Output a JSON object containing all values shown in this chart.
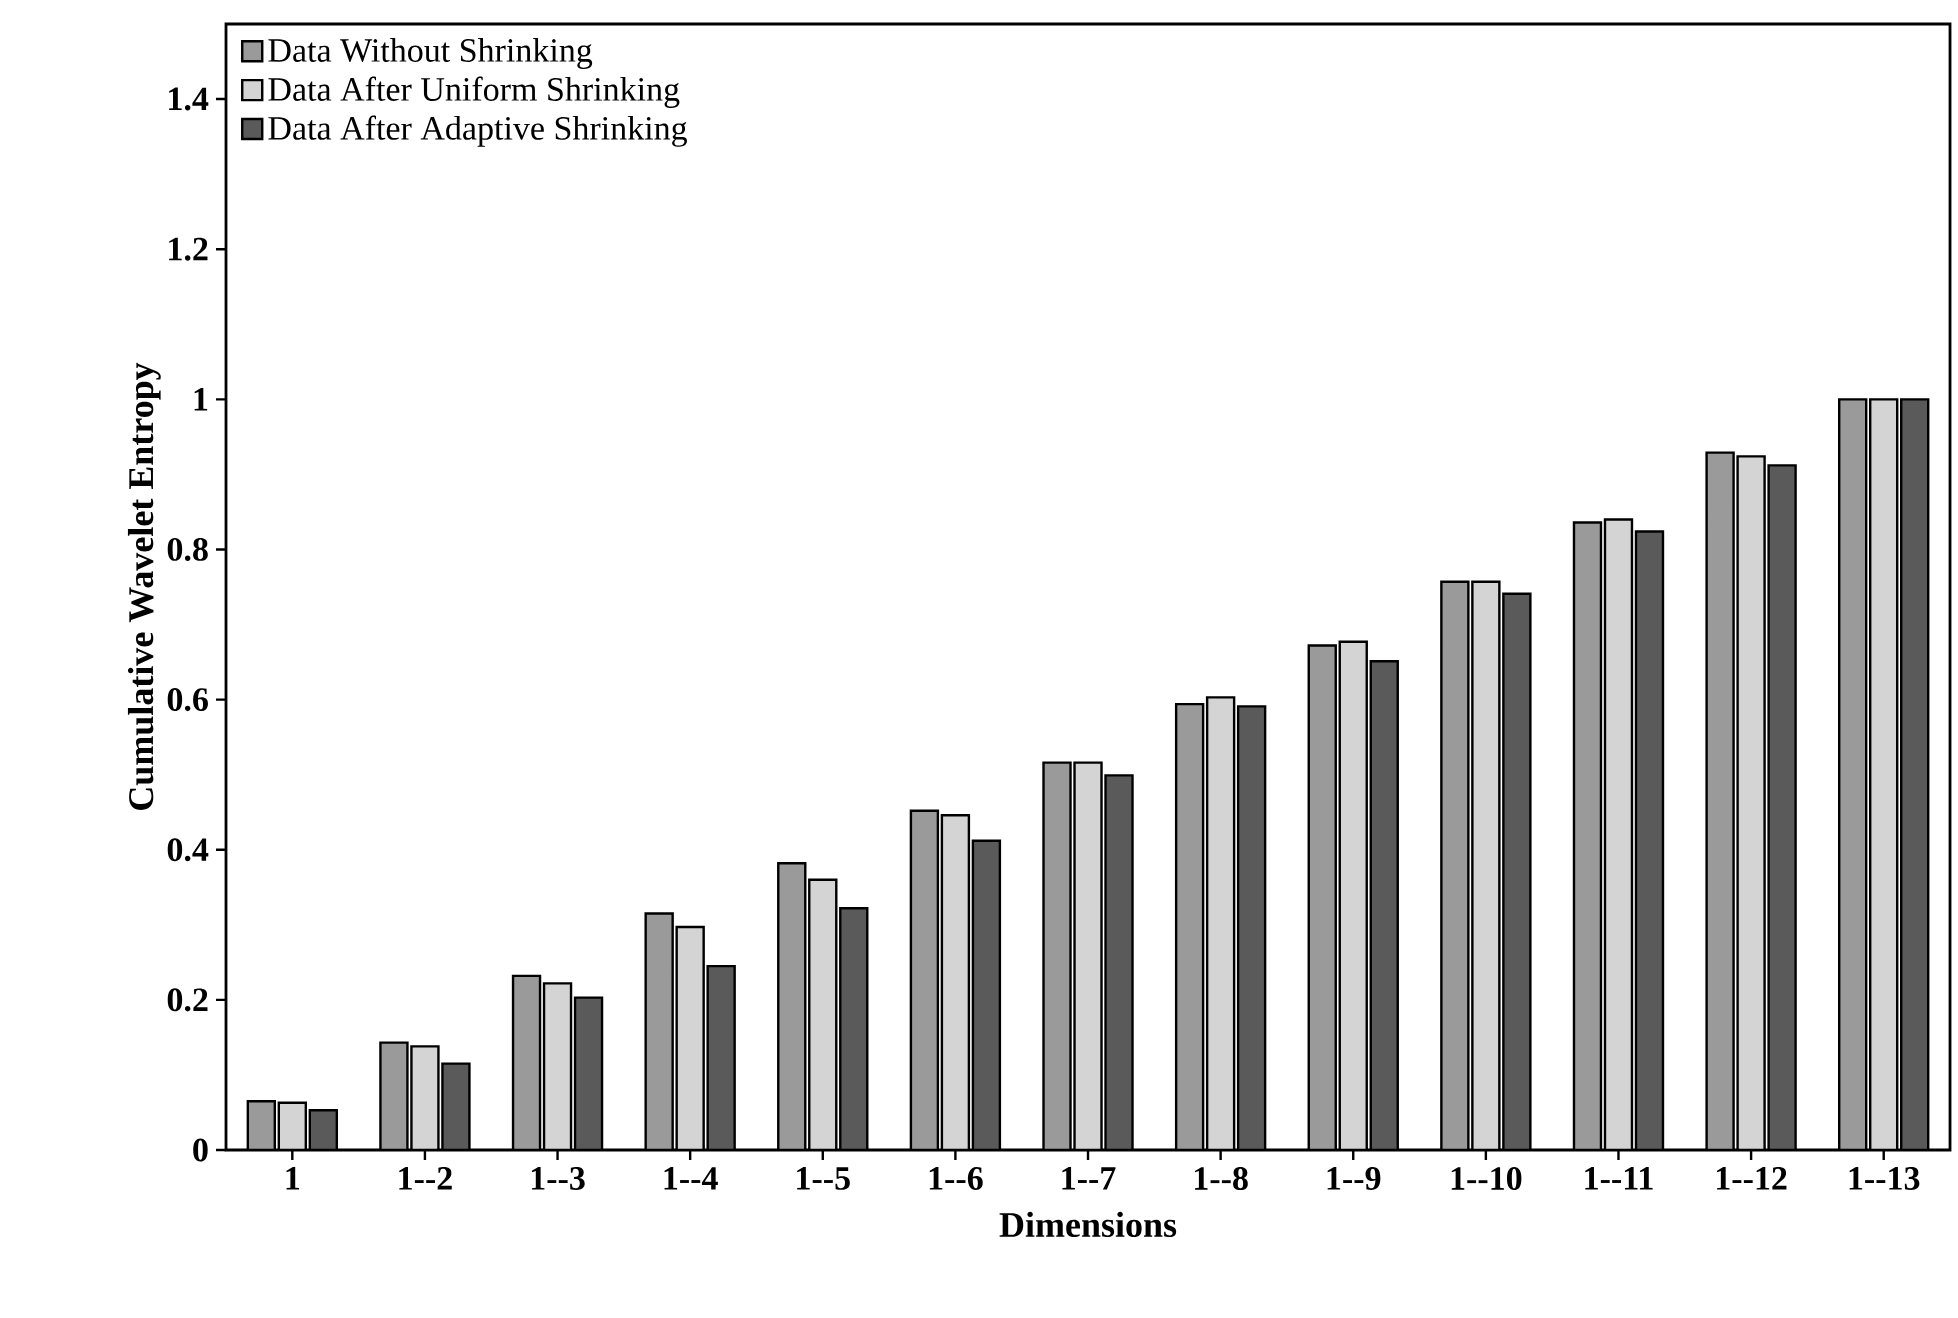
{
  "chart_data": {
    "type": "bar",
    "xlabel": "Dimensions",
    "ylabel": "Cumulative Wavelet Entropy",
    "categories": [
      "1",
      "1--2",
      "1--3",
      "1--4",
      "1--5",
      "1--6",
      "1--7",
      "1--8",
      "1--9",
      "1--10",
      "1--11",
      "1--12",
      "1--13"
    ],
    "series": [
      {
        "name": "Data Without Shrinking",
        "color": "#9a9a9a",
        "values": [
          0.065,
          0.143,
          0.232,
          0.315,
          0.382,
          0.452,
          0.516,
          0.594,
          0.672,
          0.757,
          0.836,
          0.929,
          1.0
        ]
      },
      {
        "name": "Data After Uniform Shrinking",
        "color": "#d4d4d4",
        "values": [
          0.063,
          0.138,
          0.222,
          0.297,
          0.36,
          0.446,
          0.516,
          0.603,
          0.677,
          0.757,
          0.84,
          0.924,
          1.0
        ]
      },
      {
        "name": "Data After Adaptive Shrinking",
        "color": "#5a5a5a",
        "values": [
          0.053,
          0.115,
          0.203,
          0.245,
          0.322,
          0.412,
          0.499,
          0.591,
          0.651,
          0.741,
          0.824,
          0.912,
          1.0
        ]
      }
    ],
    "ylim": [
      0,
      1.5
    ],
    "yticks": [
      0,
      0.2,
      0.4,
      0.6,
      0.8,
      1,
      1.2,
      1.4
    ],
    "grid": false,
    "legend": "top left"
  }
}
